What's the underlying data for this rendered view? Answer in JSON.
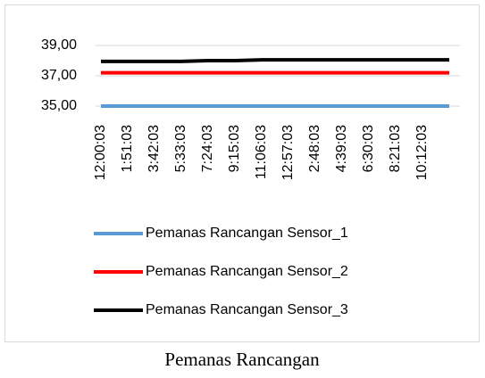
{
  "chart_data": {
    "type": "line",
    "caption": "Pemanas Rancangan",
    "categories": [
      "12:00:03",
      "1:51:03",
      "3:42:03",
      "5:33:03",
      "7:24:03",
      "9:15:03",
      "11:06:03",
      "12:57:03",
      "2:48:03",
      "4:39:03",
      "6:30:03",
      "8:21:03",
      "10:12:03",
      null
    ],
    "series": [
      {
        "name": "Pemanas Rancangan Sensor_1",
        "color": "#5b9bd5",
        "values": [
          35,
          35,
          35,
          35,
          35,
          35,
          35,
          35,
          35,
          35,
          35,
          35,
          35,
          35
        ]
      },
      {
        "name": "Pemanas Rancangan Sensor_2",
        "color": "#ff0000",
        "values": [
          37.2,
          37.2,
          37.2,
          37.2,
          37.2,
          37.2,
          37.2,
          37.2,
          37.2,
          37.2,
          37.2,
          37.2,
          37.2,
          37.2
        ]
      },
      {
        "name": "Pemanas Rancangan Sensor_3",
        "color": "#000000",
        "values": [
          37.95,
          37.95,
          37.95,
          37.95,
          38.0,
          38.0,
          38.05,
          38.05,
          38.05,
          38.05,
          38.05,
          38.05,
          38.05,
          38.05
        ]
      }
    ],
    "ylim": [
      35,
      39
    ],
    "yticks": [
      {
        "value": 35,
        "label": "35,00"
      },
      {
        "value": 37,
        "label": "37,00"
      },
      {
        "value": 39,
        "label": "39,00"
      }
    ],
    "grid": true,
    "legend": "bottom"
  }
}
